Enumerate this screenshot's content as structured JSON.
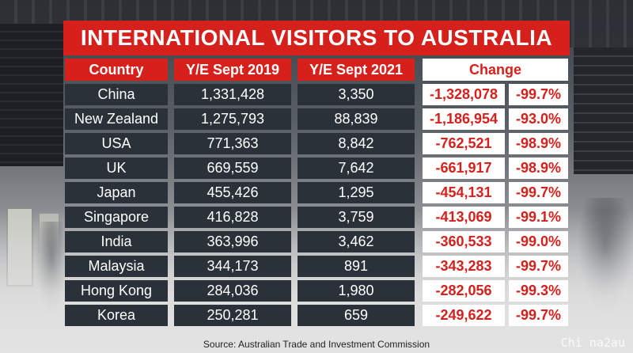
{
  "title": "INTERNATIONAL VISITORS TO AUSTRALIA",
  "headers": {
    "country": "Country",
    "y2019": "Y/E Sept 2019",
    "y2021": "Y/E Sept 2021",
    "change": "Change"
  },
  "rows": [
    {
      "country": "China",
      "y2019": "1,331,428",
      "y2021": "3,350",
      "change": "-1,328,078",
      "pct": "-99.7%"
    },
    {
      "country": "New Zealand",
      "y2019": "1,275,793",
      "y2021": "88,839",
      "change": "-1,186,954",
      "pct": "-93.0%"
    },
    {
      "country": "USA",
      "y2019": "771,363",
      "y2021": "8,842",
      "change": "-762,521",
      "pct": "-98.9%"
    },
    {
      "country": "UK",
      "y2019": "669,559",
      "y2021": "7,642",
      "change": "-661,917",
      "pct": "-98.9%"
    },
    {
      "country": "Japan",
      "y2019": "455,426",
      "y2021": "1,295",
      "change": "-454,131",
      "pct": "-99.7%"
    },
    {
      "country": "Singapore",
      "y2019": "416,828",
      "y2021": "3,759",
      "change": "-413,069",
      "pct": "-99.1%"
    },
    {
      "country": "India",
      "y2019": "363,996",
      "y2021": "3,462",
      "change": "-360,533",
      "pct": "-99.0%"
    },
    {
      "country": "Malaysia",
      "y2019": "344,173",
      "y2021": "891",
      "change": "-343,283",
      "pct": "-99.7%"
    },
    {
      "country": "Hong Kong",
      "y2019": "284,036",
      "y2021": "1,980",
      "change": "-282,056",
      "pct": "-99.3%"
    },
    {
      "country": "Korea",
      "y2019": "250,281",
      "y2021": "659",
      "change": "-249,622",
      "pct": "-99.7%"
    }
  ],
  "source": "Source: Australian Trade and Investment Commission",
  "watermark": "Chi na2au",
  "colors": {
    "accent_red": "#d6201c",
    "cell_dark": "#2b3139",
    "text_white": "#ffffff"
  }
}
